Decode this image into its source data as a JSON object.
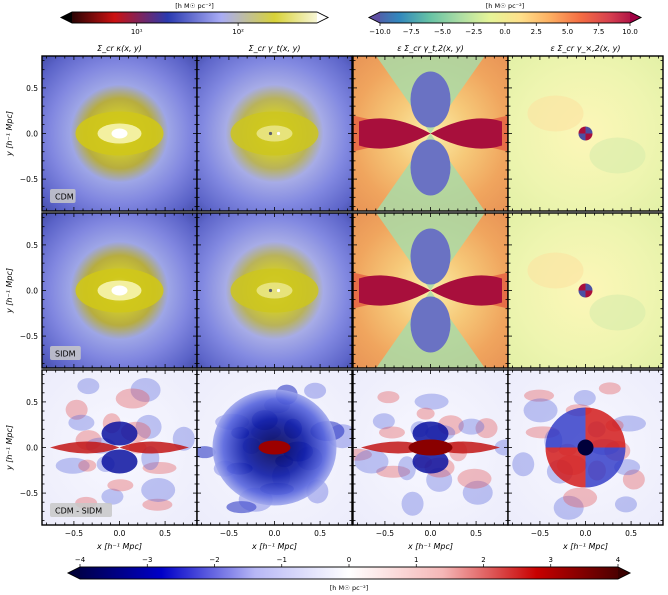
{
  "chart_data": {
    "type": "heatmap",
    "columns": [
      {
        "title": "Σ_cr κ(x, y)",
        "key": "kappa"
      },
      {
        "title": "Σ_cr γ_t(x, y)",
        "key": "gamma_t"
      },
      {
        "title": "ε Σ_cr γ_t,2(x, y)",
        "key": "gamma_t2"
      },
      {
        "title": "ε Σ_cr γ_×,2(x, y)",
        "key": "gamma_x2"
      }
    ],
    "rows": [
      {
        "label": "CDM"
      },
      {
        "label": "SIDM"
      },
      {
        "label": "CDM - SIDM"
      }
    ],
    "xlabel": "x [h⁻¹ Mpc]",
    "ylabel": "y [h⁻¹ Mpc]",
    "xlim": [
      -0.85,
      0.85
    ],
    "ylim": [
      -0.85,
      0.85
    ],
    "x_ticks": [
      -0.5,
      0.0,
      0.5
    ],
    "x_tick_labels": [
      "−0.5",
      "0.0",
      "0.5"
    ],
    "y_ticks": [
      0.5,
      0.0,
      -0.5
    ],
    "y_tick_labels": [
      "0.5",
      "0.0",
      "−0.5"
    ],
    "colorbars": [
      {
        "name": "log-density",
        "scale": "log",
        "unit": "[h M☉ pc⁻²]",
        "ticks": [
          10,
          100
        ],
        "tick_labels": [
          "10¹",
          "10²"
        ],
        "colormap": [
          "#000000",
          "#cc1111",
          "#2a3ab0",
          "#a9acf5",
          "#d8d238",
          "#ffffff"
        ]
      },
      {
        "name": "shear-anisotropy",
        "scale": "linear",
        "unit": "[h M☉ pc⁻²]",
        "range": [
          -10,
          10
        ],
        "ticks": [
          -10,
          -7.5,
          -5,
          -2.5,
          0,
          2.5,
          5,
          7.5,
          10
        ],
        "tick_labels": [
          "−10.0",
          "−7.5",
          "−5.0",
          "−2.5",
          "0.0",
          "2.5",
          "5.0",
          "7.5",
          "10.0"
        ],
        "colormap": [
          "#5e4fa2",
          "#3288bd",
          "#66c2a5",
          "#abdda4",
          "#e6f598",
          "#fee08b",
          "#fdae61",
          "#f46d43",
          "#d53e4f",
          "#9e0142"
        ]
      },
      {
        "name": "difference",
        "scale": "linear",
        "unit": "[h M☉ pc⁻²]",
        "range": [
          -4,
          4
        ],
        "ticks": [
          -4,
          -3,
          -2,
          -1,
          0,
          1,
          2,
          3,
          4
        ],
        "tick_labels": [
          "−4",
          "−3",
          "−2",
          "−1",
          "0",
          "1",
          "2",
          "3",
          "4"
        ],
        "colormap": [
          "#00003a",
          "#0000c8",
          "#b7b7f5",
          "#ffffff",
          "#f5b7b7",
          "#c80000",
          "#3a0000"
        ]
      }
    ]
  }
}
